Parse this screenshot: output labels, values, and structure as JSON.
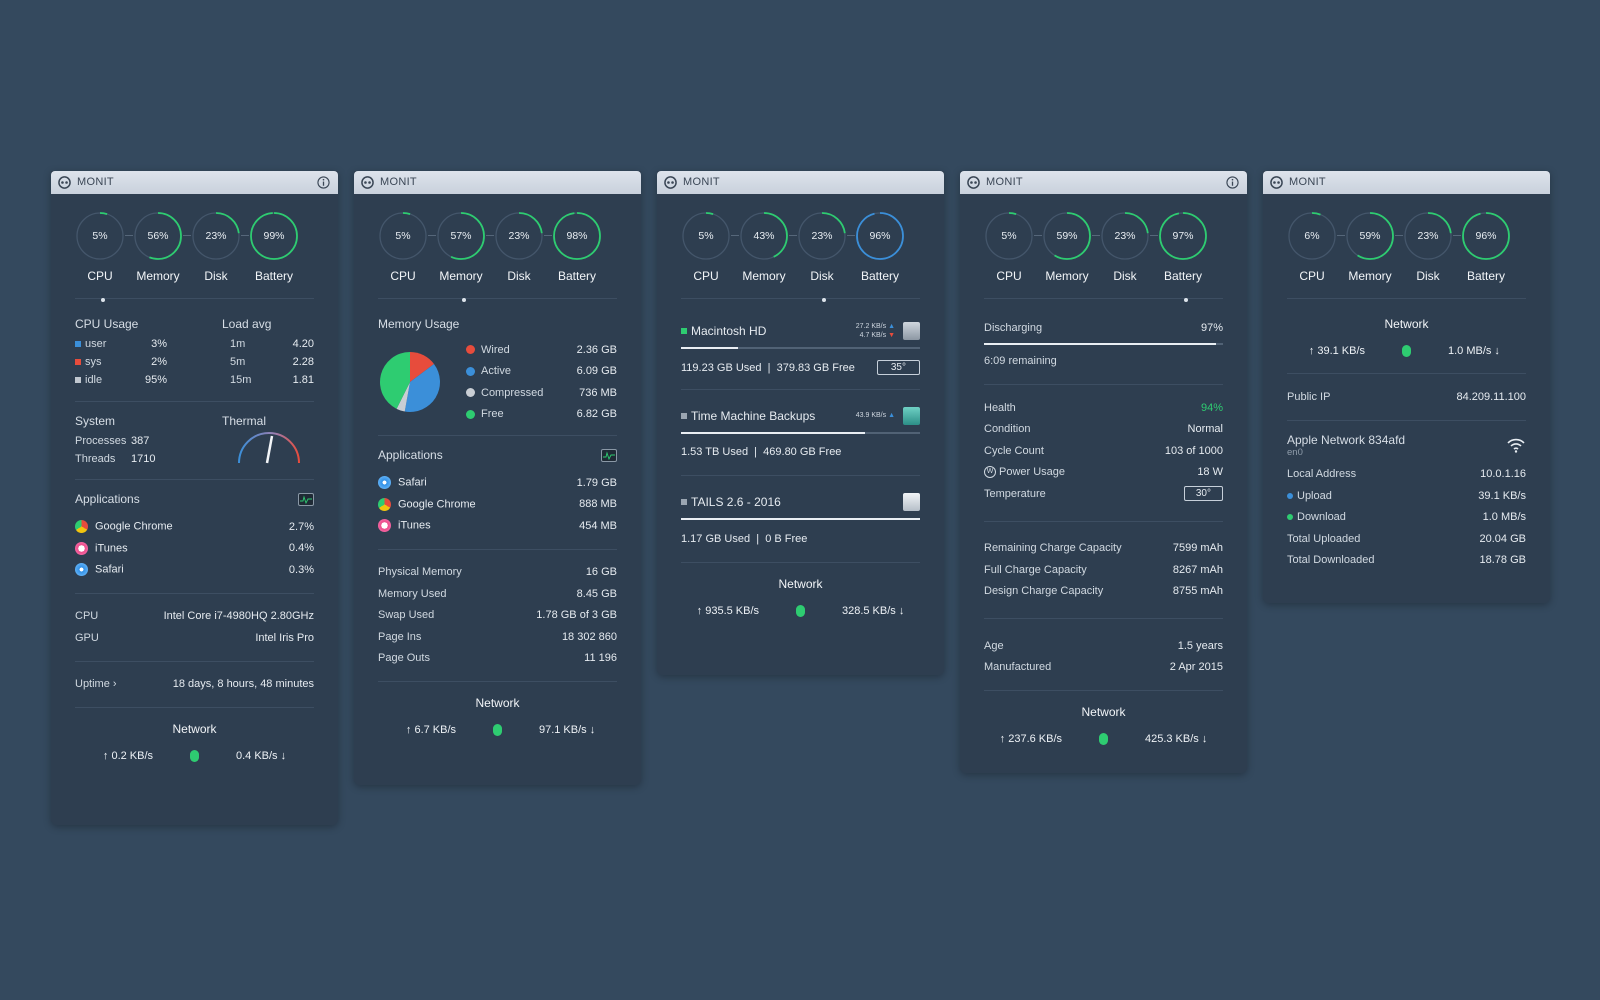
{
  "colors": {
    "background": "#34495e",
    "panel": "#2e3e50",
    "green": "#2ecc71",
    "blue": "#3b8fd9",
    "red": "#e74c3c",
    "gray": "#c0c7cf"
  },
  "app_title": "MONIT",
  "gauge_labels": [
    "CPU",
    "Memory",
    "Disk",
    "Battery"
  ],
  "panels": [
    {
      "gauges": [
        {
          "value": "5%",
          "fraction": 0.05,
          "color": "#2ecc71"
        },
        {
          "value": "56%",
          "fraction": 0.56,
          "color": "#2ecc71"
        },
        {
          "value": "23%",
          "fraction": 0.23,
          "color": "#2ecc71"
        },
        {
          "value": "99%",
          "fraction": 0.99,
          "color": "#2ecc71"
        }
      ],
      "cpu_usage": {
        "title": "CPU Usage",
        "rows": [
          {
            "label": "user",
            "value": "3%",
            "color": "#3b8fd9"
          },
          {
            "label": "sys",
            "value": "2%",
            "color": "#e74c3c"
          },
          {
            "label": "idle",
            "value": "95%",
            "color": "#c0c7cf"
          }
        ]
      },
      "load_avg": {
        "title": "Load avg",
        "rows": [
          {
            "label": "1m",
            "value": "4.20"
          },
          {
            "label": "5m",
            "value": "2.28"
          },
          {
            "label": "15m",
            "value": "1.81"
          }
        ]
      },
      "system": {
        "title": "System",
        "rows": [
          {
            "label": "Processes",
            "value": "387"
          },
          {
            "label": "Threads",
            "value": "1710"
          }
        ]
      },
      "thermal": {
        "title": "Thermal"
      },
      "applications": {
        "title": "Applications",
        "items": [
          {
            "name": "Google Chrome",
            "value": "2.7%",
            "icon": "chrome-icon"
          },
          {
            "name": "iTunes",
            "value": "0.4%",
            "icon": "itunes-icon"
          },
          {
            "name": "Safari",
            "value": "0.3%",
            "icon": "safari-icon"
          }
        ]
      },
      "hardware": [
        {
          "label": "CPU",
          "value": "Intel Core i7-4980HQ 2.80GHz"
        },
        {
          "label": "GPU",
          "value": "Intel Iris Pro"
        }
      ],
      "uptime": {
        "label": "Uptime ›",
        "value": "18 days, 8 hours, 48 minutes"
      },
      "network": {
        "title": "Network",
        "up": "↑ 0.2 KB/s",
        "down": "0.4 KB/s ↓"
      }
    },
    {
      "gauges": [
        {
          "value": "5%",
          "fraction": 0.05,
          "color": "#2ecc71"
        },
        {
          "value": "57%",
          "fraction": 0.57,
          "color": "#2ecc71"
        },
        {
          "value": "23%",
          "fraction": 0.23,
          "color": "#2ecc71"
        },
        {
          "value": "98%",
          "fraction": 0.98,
          "color": "#2ecc71"
        }
      ],
      "memory_usage": {
        "title": "Memory Usage",
        "items": [
          {
            "label": "Wired",
            "value": "2.36 GB",
            "color": "#e74c3c",
            "gb": 2.36
          },
          {
            "label": "Active",
            "value": "6.09 GB",
            "color": "#3b8fd9",
            "gb": 6.09
          },
          {
            "label": "Compressed",
            "value": "736 MB",
            "color": "#c9ced4",
            "gb": 0.736
          },
          {
            "label": "Free",
            "value": "6.82 GB",
            "color": "#2ecc71",
            "gb": 6.82
          }
        ]
      },
      "applications": {
        "title": "Applications",
        "items": [
          {
            "name": "Safari",
            "value": "1.79 GB",
            "icon": "safari-icon"
          },
          {
            "name": "Google Chrome",
            "value": "888 MB",
            "icon": "chrome-icon"
          },
          {
            "name": "iTunes",
            "value": "454 MB",
            "icon": "itunes-icon"
          }
        ]
      },
      "stats": [
        {
          "label": "Physical Memory",
          "value": "16 GB"
        },
        {
          "label": "Memory Used",
          "value": "8.45 GB"
        },
        {
          "label": "Swap Used",
          "value": "1.78 GB of 3 GB"
        },
        {
          "label": "Page Ins",
          "value": "18 302 860"
        },
        {
          "label": "Page Outs",
          "value": "11 196"
        }
      ],
      "network": {
        "title": "Network",
        "up": "↑ 6.7 KB/s",
        "down": "97.1 KB/s ↓"
      }
    },
    {
      "gauges": [
        {
          "value": "5%",
          "fraction": 0.05,
          "color": "#2ecc71"
        },
        {
          "value": "43%",
          "fraction": 0.43,
          "color": "#2ecc71"
        },
        {
          "value": "23%",
          "fraction": 0.23,
          "color": "#2ecc71"
        },
        {
          "value": "96%",
          "fraction": 0.96,
          "color": "#3b8fd9"
        }
      ],
      "disks": [
        {
          "name": "Macintosh HD",
          "status_color": "#2ecc71",
          "read": "27.2 KB/s",
          "write": "4.7 KB/s",
          "used": "119.23 GB Used",
          "free": "379.83 GB Free",
          "temp": "35°",
          "fraction": 0.24
        },
        {
          "name": "Time Machine Backups",
          "status_color": "#9aa5b1",
          "read": "43.9 KB/s",
          "used": "1.53 TB Used",
          "free": "469.80 GB Free",
          "fraction": 0.77
        },
        {
          "name": "TAILS 2.6 - 2016",
          "status_color": "#9aa5b1",
          "used": "1.17 GB Used",
          "free": "0 B Free",
          "fraction": 1.0
        }
      ],
      "network": {
        "title": "Network",
        "up": "↑ 935.5 KB/s",
        "down": "328.5 KB/s ↓"
      }
    },
    {
      "gauges": [
        {
          "value": "5%",
          "fraction": 0.05,
          "color": "#2ecc71"
        },
        {
          "value": "59%",
          "fraction": 0.59,
          "color": "#2ecc71"
        },
        {
          "value": "23%",
          "fraction": 0.23,
          "color": "#2ecc71"
        },
        {
          "value": "97%",
          "fraction": 0.97,
          "color": "#2ecc71"
        }
      ],
      "battery": {
        "state": "Discharging",
        "percent": "97%",
        "fraction": 0.97,
        "remaining": "6:09  remaining"
      },
      "health": [
        {
          "label": "Health",
          "value": "94%",
          "green": true
        },
        {
          "label": "Condition",
          "value": "Normal"
        },
        {
          "label": "Cycle Count",
          "value": "103 of 1000"
        },
        {
          "label": "Power Usage",
          "value": "18 W"
        }
      ],
      "temperature": {
        "label": "Temperature",
        "value": "30°"
      },
      "capacity": [
        {
          "label": "Remaining Charge Capacity",
          "value": "7599 mAh"
        },
        {
          "label": "Full Charge Capacity",
          "value": "8267 mAh"
        },
        {
          "label": "Design Charge Capacity",
          "value": "8755 mAh"
        }
      ],
      "age": [
        {
          "label": "Age",
          "value": "1.5 years"
        },
        {
          "label": "Manufactured",
          "value": "2 Apr 2015"
        }
      ],
      "network": {
        "title": "Network",
        "up": "↑ 237.6 KB/s",
        "down": "425.3 KB/s ↓"
      }
    },
    {
      "gauges": [
        {
          "value": "6%",
          "fraction": 0.06,
          "color": "#2ecc71"
        },
        {
          "value": "59%",
          "fraction": 0.59,
          "color": "#2ecc71"
        },
        {
          "value": "23%",
          "fraction": 0.23,
          "color": "#2ecc71"
        },
        {
          "value": "96%",
          "fraction": 0.96,
          "color": "#2ecc71"
        }
      ],
      "network": {
        "title": "Network",
        "up": "↑ 39.1 KB/s",
        "down": "1.0 MB/s ↓"
      },
      "public_ip": {
        "label": "Public IP",
        "value": "84.209.11.100"
      },
      "wifi": {
        "name": "Apple Network 834afd",
        "iface": "en0"
      },
      "details": [
        {
          "label": "Local Address",
          "value": "10.0.1.16"
        },
        {
          "label": "Upload",
          "value": "39.1 KB/s",
          "dot": "#3b8fd9"
        },
        {
          "label": "Download",
          "value": "1.0 MB/s",
          "dot": "#2ecc71"
        },
        {
          "label": "Total Uploaded",
          "value": "20.04 GB"
        },
        {
          "label": "Total Downloaded",
          "value": "18.78 GB"
        }
      ]
    }
  ]
}
